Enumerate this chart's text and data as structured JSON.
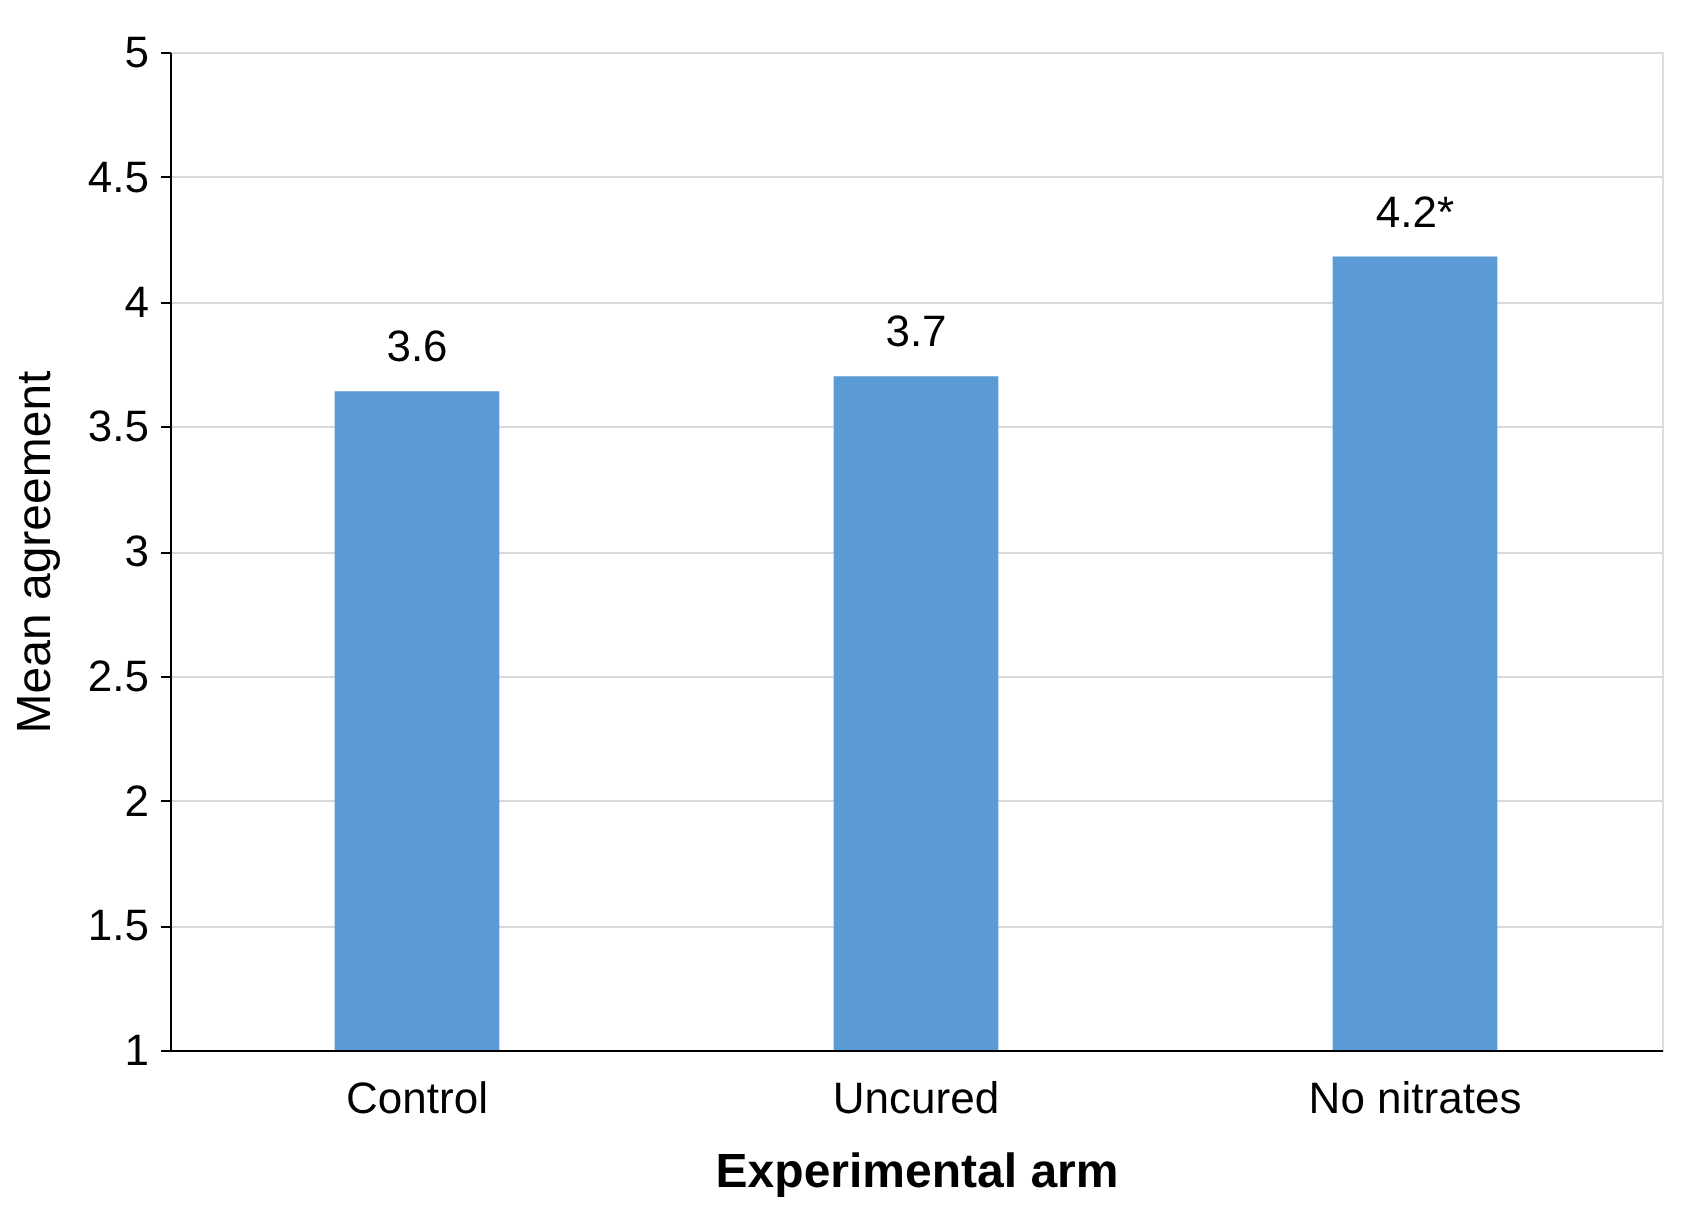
{
  "chart_data": {
    "type": "bar",
    "xlabel": "Experimental arm",
    "ylabel": "Mean agreement",
    "categories": [
      "Control",
      "Uncured",
      "No nitrates"
    ],
    "values": [
      3.64,
      3.7,
      4.18
    ],
    "value_labels": [
      "3.6",
      "3.7",
      "4.2*"
    ],
    "color": "#5b9bd5",
    "ylim": [
      1,
      5
    ],
    "yticks": [
      1,
      1.5,
      2,
      2.5,
      3,
      3.5,
      4,
      4.5,
      5
    ],
    "grid": "y"
  }
}
